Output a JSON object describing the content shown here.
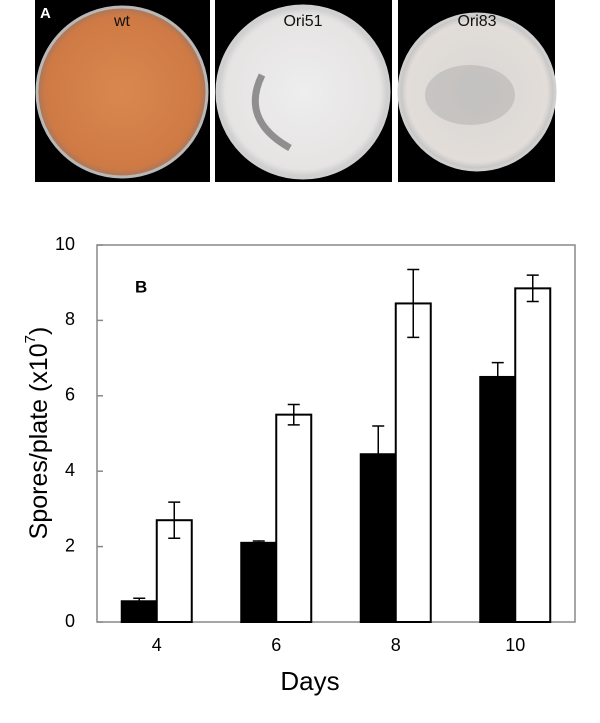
{
  "panel_a": {
    "label": "A",
    "plates": [
      "wt",
      "Ori51",
      "Ori83"
    ]
  },
  "chart_data": {
    "type": "bar",
    "panel_label": "B",
    "xlabel": "Days",
    "ylabel": {
      "text": "Spores/plate (x10",
      "sup": "7",
      "end": ")"
    },
    "categories": [
      "4",
      "6",
      "8",
      "10"
    ],
    "series": [
      {
        "color": "#000000",
        "values": [
          0.55,
          2.1,
          4.45,
          6.5
        ],
        "errors": [
          0.08,
          0.05,
          0.75,
          0.38
        ]
      },
      {
        "color": "#ffffff",
        "values": [
          2.7,
          5.5,
          8.45,
          8.85
        ],
        "errors": [
          0.48,
          0.27,
          0.9,
          0.35
        ]
      }
    ],
    "ylim": [
      0,
      10
    ],
    "yticks": [
      0,
      2,
      4,
      6,
      8,
      10
    ]
  }
}
